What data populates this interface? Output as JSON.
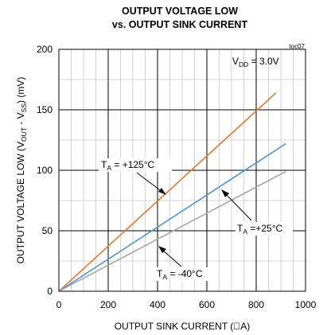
{
  "chart_data": {
    "type": "line",
    "title_line1": "OUTPUT VOLTAGE LOW",
    "title_line2": "vs. OUTPUT SINK CURRENT",
    "figure_code": "toc07",
    "xlabel": "OUTPUT SINK CURRENT (\u0000A)",
    "ylabel": {
      "pre": "OUTPUT VOLTAGE LOW (V",
      "sub1": "OUT",
      "mid": " - V",
      "sub2": "SS",
      "post": ") (mV)"
    },
    "xlim": [
      0,
      1000
    ],
    "ylim": [
      0,
      200
    ],
    "x_ticks": [
      0,
      200,
      400,
      600,
      800,
      1000
    ],
    "y_ticks": [
      0,
      50,
      100,
      150,
      200
    ],
    "x_minor_step": 50,
    "y_minor_step": 25,
    "grid": true,
    "condition": {
      "pre": "V",
      "sub": "DD",
      "post": " = 3.0V"
    },
    "series": [
      {
        "color": "#e8752a",
        "x": [
          0,
          880
        ],
        "y": [
          0,
          164
        ],
        "label": {
          "pre": "T",
          "sub": "A",
          "post": " = +125°C"
        }
      },
      {
        "color": "#4f95cf",
        "x": [
          0,
          920
        ],
        "y": [
          0,
          122
        ],
        "label": {
          "pre": "T",
          "sub": "A",
          "post": " =+25°C"
        }
      },
      {
        "color": "#a6a6a6",
        "x": [
          0,
          920
        ],
        "y": [
          0,
          99
        ],
        "label": {
          "pre": "T",
          "sub": "A",
          "post": " = -40°C"
        }
      }
    ]
  }
}
